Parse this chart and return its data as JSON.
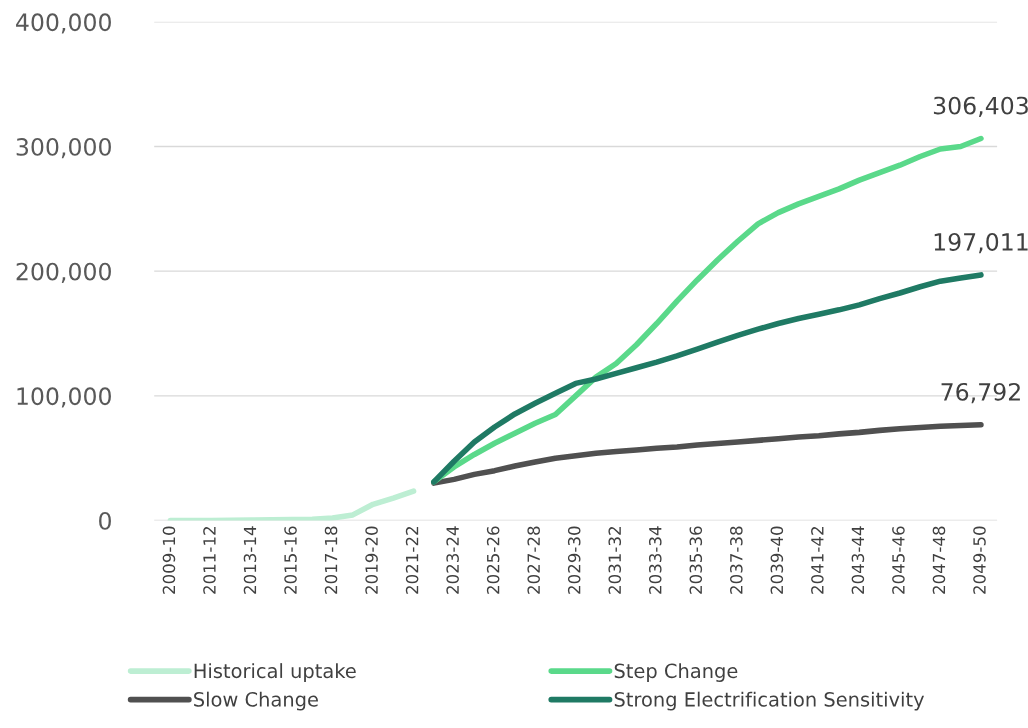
{
  "chart_data": {
    "type": "line",
    "categories": [
      "2009-10",
      null,
      "2011-12",
      null,
      "2013-14",
      null,
      "2015-16",
      null,
      "2017-18",
      null,
      "2019-20",
      null,
      "2021-22",
      null,
      "2023-24",
      null,
      "2025-26",
      null,
      "2027-28",
      null,
      "2029-30",
      null,
      "2031-32",
      null,
      "2033-34",
      null,
      "2035-36",
      null,
      "2037-38",
      null,
      "2039-40",
      null,
      "2041-42",
      null,
      "2043-44",
      null,
      "2045-46",
      null,
      "2047-48",
      null,
      "2049-50"
    ],
    "series": [
      {
        "name": "Historical uptake",
        "color": "#bdeed3",
        "values": [
          0,
          0,
          0,
          200,
          300,
          500,
          700,
          1000,
          2000,
          4500,
          13000,
          18000,
          23500,
          null,
          null,
          null,
          null,
          null,
          null,
          null,
          null,
          null,
          null,
          null,
          null,
          null,
          null,
          null,
          null,
          null,
          null,
          null,
          null,
          null,
          null,
          null,
          null,
          null,
          null,
          null,
          null
        ]
      },
      {
        "name": "Slow Change",
        "color": "#505050",
        "values": [
          null,
          null,
          null,
          null,
          null,
          null,
          null,
          null,
          null,
          null,
          null,
          null,
          null,
          30000,
          33000,
          37000,
          40000,
          43700,
          47000,
          50000,
          52000,
          54000,
          55300,
          56600,
          58000,
          59000,
          60500,
          61700,
          63000,
          64300,
          65600,
          67000,
          68000,
          69500,
          70700,
          72300,
          73600,
          74600,
          75600,
          76200,
          76792
        ],
        "value_labels": [
          null,
          null,
          null,
          null,
          null,
          null,
          null,
          null,
          null,
          null,
          null,
          null,
          null,
          null,
          null,
          null,
          null,
          null,
          null,
          null,
          null,
          null,
          null,
          null,
          null,
          null,
          null,
          null,
          null,
          null,
          null,
          null,
          null,
          null,
          null,
          null,
          null,
          null,
          null,
          null,
          "76,792"
        ]
      },
      {
        "name": "Step Change",
        "color": "#5ad98a",
        "values": [
          null,
          null,
          null,
          null,
          null,
          null,
          null,
          null,
          null,
          null,
          null,
          null,
          null,
          31000,
          43000,
          53000,
          62000,
          70000,
          78000,
          85000,
          100000,
          115000,
          126000,
          141000,
          158000,
          176000,
          193000,
          209000,
          224000,
          238000,
          247000,
          254000,
          260000,
          266000,
          273000,
          279000,
          285000,
          292000,
          298000,
          300000,
          306403
        ],
        "value_labels": [
          null,
          null,
          null,
          null,
          null,
          null,
          null,
          null,
          null,
          null,
          null,
          null,
          null,
          null,
          null,
          null,
          null,
          null,
          null,
          null,
          null,
          null,
          null,
          null,
          null,
          null,
          null,
          null,
          null,
          null,
          null,
          null,
          null,
          null,
          null,
          null,
          null,
          null,
          null,
          null,
          "306,403"
        ]
      },
      {
        "name": "Strong Electrification Sensitivity",
        "color": "#1f7a64",
        "values": [
          null,
          null,
          null,
          null,
          null,
          null,
          null,
          null,
          null,
          null,
          null,
          null,
          null,
          31000,
          47500,
          63000,
          75000,
          85500,
          94000,
          102000,
          110000,
          113500,
          118000,
          122500,
          127000,
          132000,
          137500,
          143000,
          148500,
          153500,
          158000,
          162000,
          165500,
          169000,
          173000,
          178000,
          182500,
          187500,
          192000,
          194500,
          197011
        ],
        "value_labels": [
          null,
          null,
          null,
          null,
          null,
          null,
          null,
          null,
          null,
          null,
          null,
          null,
          null,
          null,
          null,
          null,
          null,
          null,
          null,
          null,
          null,
          null,
          null,
          null,
          null,
          null,
          null,
          null,
          null,
          null,
          null,
          null,
          null,
          null,
          null,
          null,
          null,
          null,
          null,
          null,
          "197,011"
        ]
      }
    ],
    "ylim": [
      0,
      400000
    ],
    "yticks": [
      {
        "value": 0,
        "label": "0"
      },
      {
        "value": 100000,
        "label": "100,000"
      },
      {
        "value": 200000,
        "label": "200,000"
      },
      {
        "value": 300000,
        "label": "300,000"
      },
      {
        "value": 400000,
        "label": "400,000"
      }
    ],
    "grid": "y",
    "legend": "bottom",
    "marker": "none",
    "line_style": "solid"
  }
}
